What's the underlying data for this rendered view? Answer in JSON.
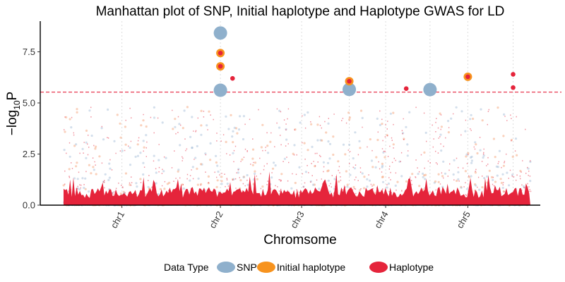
{
  "chart_data": {
    "type": "scatter",
    "title": "Manhattan plot of SNP, Initial haplotype and Haplotype GWAS for LD",
    "xlabel": "Chromsome",
    "ylabel": {
      "main": "−log",
      "sub": "10",
      "tail": "P"
    },
    "ylim": [
      0,
      9
    ],
    "yticks": [
      {
        "value": 0,
        "label": "0.0"
      },
      {
        "value": 2.5,
        "label": "2.5"
      },
      {
        "value": 5,
        "label": "5.0"
      },
      {
        "value": 7.5,
        "label": "7.5"
      }
    ],
    "xlim": [
      0,
      100
    ],
    "chromosomes": [
      {
        "label": "chr1",
        "start": 0,
        "end": 38,
        "center": 12.5
      },
      {
        "label": "chr2",
        "start": 38,
        "end": 61,
        "center": 33.6
      },
      {
        "label": "chr3",
        "start": 61,
        "end": 72,
        "center": 51.0
      },
      {
        "label": "chr4",
        "start": 72,
        "end": 87,
        "center": 69.0
      },
      {
        "label": "chr5",
        "start": 87,
        "end": 100,
        "center": 86.6
      }
    ],
    "grid_x": [
      12.5,
      33.6,
      51.0,
      61.2,
      69.0,
      78.5,
      86.6,
      96.3
    ],
    "threshold": {
      "value": 5.53,
      "color": "#e8374f"
    },
    "series": [
      {
        "name": "SNP",
        "color": "#8fb0cc",
        "points": [
          {
            "x": 33.6,
            "y": 8.42
          },
          {
            "x": 33.6,
            "y": 5.62
          },
          {
            "x": 61.2,
            "y": 5.66
          },
          {
            "x": 78.5,
            "y": 5.65
          }
        ]
      },
      {
        "name": "Initial haplotype",
        "color": "#f7931e",
        "points": [
          {
            "x": 33.6,
            "y": 7.44
          },
          {
            "x": 33.6,
            "y": 6.79
          },
          {
            "x": 61.2,
            "y": 6.06
          },
          {
            "x": 86.6,
            "y": 6.28
          }
        ]
      },
      {
        "name": "Haplotype",
        "color": "#e5243b",
        "points": [
          {
            "x": 33.6,
            "y": 7.44
          },
          {
            "x": 33.6,
            "y": 6.79
          },
          {
            "x": 36.2,
            "y": 6.2
          },
          {
            "x": 61.2,
            "y": 6.06
          },
          {
            "x": 73.4,
            "y": 5.7
          },
          {
            "x": 86.6,
            "y": 6.28
          },
          {
            "x": 96.3,
            "y": 6.4
          },
          {
            "x": 96.3,
            "y": 5.75
          }
        ]
      }
    ],
    "legend": {
      "title": "Data Type",
      "position": "bottom"
    }
  }
}
